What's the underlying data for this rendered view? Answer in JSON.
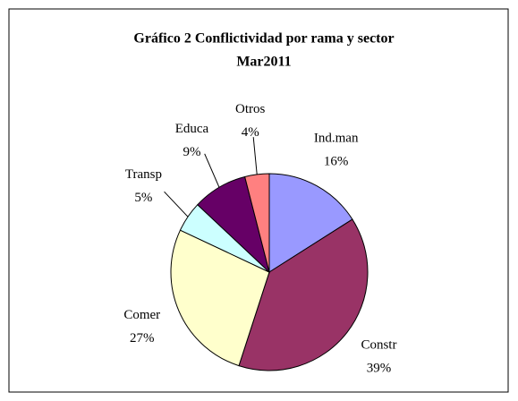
{
  "chart_data": {
    "type": "pie",
    "title": "Gráfico 2 Conflictividad por rama y sector",
    "subtitle": "Mar2011",
    "categories": [
      "Ind.man",
      "Constr",
      "Comer",
      "Transp",
      "Educa",
      "Otros"
    ],
    "values": [
      16,
      39,
      27,
      5,
      9,
      4
    ],
    "value_labels": [
      "16%",
      "39%",
      "27%",
      "5%",
      "9%",
      "4%"
    ],
    "colors": [
      "#9999ff",
      "#993366",
      "#ffffcc",
      "#ccffff",
      "#660066",
      "#ff8080"
    ]
  }
}
